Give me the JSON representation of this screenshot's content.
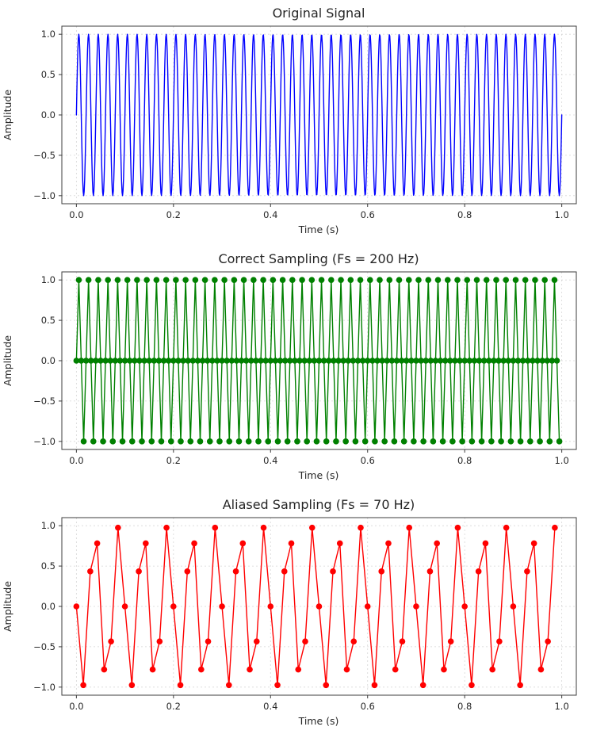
{
  "figure": {
    "background": "#ffffff",
    "text_color": "#262626",
    "grid_color": "#c9c9c9",
    "spine_color": "#3c3c3c"
  },
  "chart_data": [
    {
      "type": "line",
      "title": "Original Signal",
      "xlabel": "Time (s)",
      "ylabel": "Amplitude",
      "color": "#0000ff",
      "line_width": 1.4,
      "markers": false,
      "marker_radius": 0,
      "signal": {
        "kind": "sine",
        "frequency_hz": 50,
        "amplitude": 1,
        "duration_s": 1,
        "num_points": 1000
      },
      "xlim": [
        -0.03,
        1.03
      ],
      "ylim": [
        -1.1,
        1.1
      ],
      "x_ticks": [
        0.0,
        0.2,
        0.4,
        0.6,
        0.8,
        1.0
      ],
      "x_tick_labels": [
        "0.0",
        "0.2",
        "0.4",
        "0.6",
        "0.8",
        "1.0"
      ],
      "y_ticks": [
        -1.0,
        -0.5,
        0.0,
        0.5,
        1.0
      ],
      "y_tick_labels": [
        "−1.0",
        "−0.5",
        "0.0",
        "0.5",
        "1.0"
      ],
      "grid": true
    },
    {
      "type": "line",
      "title": "Correct Sampling (Fs = 200 Hz)",
      "xlabel": "Time (s)",
      "ylabel": "Amplitude",
      "color": "#008000",
      "line_width": 1.4,
      "markers": true,
      "marker_radius": 3.8,
      "signal": {
        "kind": "sine",
        "frequency_hz": 50,
        "amplitude": 1,
        "duration_s": 1,
        "sample_rate_hz": 200
      },
      "repeating_sample_values": [
        0,
        1,
        0,
        -1
      ],
      "xlim": [
        -0.03,
        1.03
      ],
      "ylim": [
        -1.1,
        1.1
      ],
      "x_ticks": [
        0.0,
        0.2,
        0.4,
        0.6,
        0.8,
        1.0
      ],
      "x_tick_labels": [
        "0.0",
        "0.2",
        "0.4",
        "0.6",
        "0.8",
        "1.0"
      ],
      "y_ticks": [
        -1.0,
        -0.5,
        0.0,
        0.5,
        1.0
      ],
      "y_tick_labels": [
        "−1.0",
        "−0.5",
        "0.0",
        "0.5",
        "1.0"
      ],
      "grid": true
    },
    {
      "type": "line",
      "title": "Aliased Sampling (Fs = 70 Hz)",
      "xlabel": "Time (s)",
      "ylabel": "Amplitude",
      "color": "#ff0000",
      "line_width": 1.4,
      "markers": true,
      "marker_radius": 3.8,
      "signal": {
        "kind": "sine",
        "frequency_hz": 50,
        "amplitude": 1,
        "duration_s": 1,
        "sample_rate_hz": 70
      },
      "repeating_sample_values": [
        0,
        -0.9749,
        0.4339,
        0.7818,
        -0.7818,
        -0.4339,
        0.9749
      ],
      "xlim": [
        -0.03,
        1.03
      ],
      "ylim": [
        -1.1,
        1.1
      ],
      "x_ticks": [
        0.0,
        0.2,
        0.4,
        0.6,
        0.8,
        1.0
      ],
      "x_tick_labels": [
        "0.0",
        "0.2",
        "0.4",
        "0.6",
        "0.8",
        "1.0"
      ],
      "y_ticks": [
        -1.0,
        -0.5,
        0.0,
        0.5,
        1.0
      ],
      "y_tick_labels": [
        "−1.0",
        "−0.5",
        "0.0",
        "0.5",
        "1.0"
      ],
      "grid": true
    }
  ]
}
